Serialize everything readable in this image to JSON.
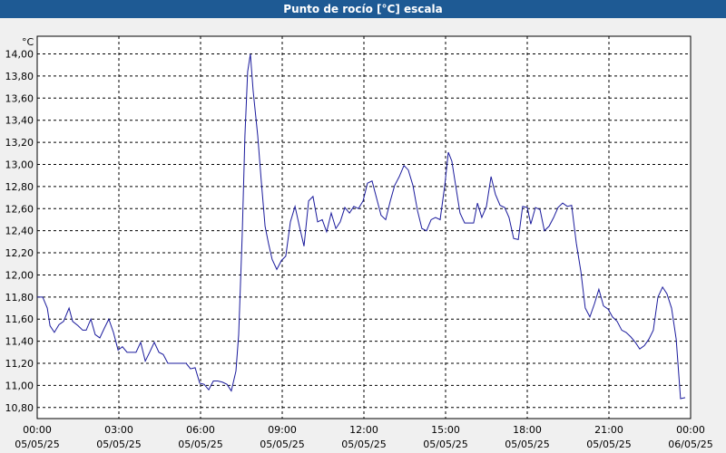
{
  "chart_data": {
    "type": "line",
    "title": "Punto de rocío [°C] escala",
    "y_label": "°C",
    "x": [
      0,
      0.2,
      0.37,
      0.47,
      0.63,
      0.8,
      0.97,
      1.17,
      1.3,
      1.5,
      1.67,
      1.8,
      1.97,
      2.13,
      2.3,
      2.47,
      2.63,
      2.8,
      2.97,
      3.13,
      3.3,
      3.47,
      3.63,
      3.8,
      3.97,
      4.13,
      4.3,
      4.47,
      4.63,
      4.8,
      4.97,
      5.3,
      5.47,
      5.63,
      5.8,
      5.97,
      6.13,
      6.3,
      6.47,
      6.63,
      6.8,
      6.97,
      7.13,
      7.3,
      7.4,
      7.53,
      7.63,
      7.73,
      7.83,
      7.93,
      8.1,
      8.23,
      8.37,
      8.5,
      8.63,
      8.8,
      8.97,
      9.13,
      9.3,
      9.47,
      9.63,
      9.8,
      9.97,
      10.13,
      10.3,
      10.47,
      10.63,
      10.8,
      10.97,
      11.13,
      11.3,
      11.47,
      11.63,
      11.8,
      11.97,
      12.13,
      12.3,
      12.47,
      12.63,
      12.8,
      12.97,
      13.13,
      13.3,
      13.47,
      13.63,
      13.8,
      13.97,
      14.13,
      14.3,
      14.47,
      14.63,
      14.8,
      14.97,
      15.1,
      15.23,
      15.37,
      15.53,
      15.7,
      15.87,
      16.03,
      16.17,
      16.33,
      16.5,
      16.67,
      16.83,
      17,
      17.17,
      17.33,
      17.5,
      17.67,
      17.83,
      18,
      18.13,
      18.3,
      18.47,
      18.63,
      18.8,
      18.97,
      19.13,
      19.3,
      19.47,
      19.63,
      19.8,
      19.97,
      20.13,
      20.3,
      20.47,
      20.63,
      20.8,
      20.97,
      21.13,
      21.3,
      21.47,
      21.63,
      21.8,
      21.97,
      22.13,
      22.3,
      22.47,
      22.63,
      22.8,
      22.97,
      23.13,
      23.3,
      23.47,
      23.63,
      23.8
    ],
    "series": [
      {
        "name": "Punto de rocío",
        "color": "#1a1a9c",
        "values": [
          11.8,
          11.8,
          11.7,
          11.54,
          11.48,
          11.55,
          11.58,
          11.7,
          11.58,
          11.54,
          11.5,
          11.5,
          11.6,
          11.46,
          11.43,
          11.52,
          11.6,
          11.48,
          11.32,
          11.35,
          11.3,
          11.3,
          11.3,
          11.39,
          11.22,
          11.3,
          11.39,
          11.3,
          11.28,
          11.2,
          11.2,
          11.2,
          11.2,
          11.15,
          11.16,
          11.02,
          11.01,
          10.96,
          11.04,
          11.04,
          11.03,
          11.01,
          10.95,
          11.13,
          11.46,
          12.36,
          13.26,
          13.84,
          14.0,
          13.67,
          13.26,
          12.85,
          12.44,
          12.28,
          12.14,
          12.05,
          12.13,
          12.17,
          12.48,
          12.62,
          12.44,
          12.26,
          12.67,
          12.71,
          12.48,
          12.5,
          12.39,
          12.56,
          12.42,
          12.48,
          12.61,
          12.56,
          12.62,
          12.6,
          12.67,
          12.83,
          12.85,
          12.69,
          12.54,
          12.5,
          12.67,
          12.81,
          12.89,
          12.99,
          12.95,
          12.81,
          12.58,
          12.42,
          12.4,
          12.5,
          12.52,
          12.5,
          12.81,
          13.11,
          13.03,
          12.81,
          12.56,
          12.47,
          12.47,
          12.47,
          12.65,
          12.52,
          12.62,
          12.89,
          12.73,
          12.63,
          12.61,
          12.52,
          12.33,
          12.32,
          12.62,
          12.61,
          12.46,
          12.61,
          12.59,
          12.4,
          12.44,
          12.52,
          12.61,
          12.65,
          12.62,
          12.63,
          12.29,
          12.03,
          11.7,
          11.62,
          11.74,
          11.87,
          11.72,
          11.69,
          11.62,
          11.58,
          11.5,
          11.48,
          11.44,
          11.39,
          11.33,
          11.36,
          11.42,
          11.5,
          11.8,
          11.89,
          11.83,
          11.7,
          11.42,
          10.88,
          10.89
        ]
      }
    ],
    "xlim": [
      0,
      24
    ],
    "xticks": [
      {
        "value": 0,
        "label": "00:00\n05/05/25"
      },
      {
        "value": 3,
        "label": "03:00\n05/05/25"
      },
      {
        "value": 6,
        "label": "06:00\n05/05/25"
      },
      {
        "value": 9,
        "label": "09:00\n05/05/25"
      },
      {
        "value": 12,
        "label": "12:00\n05/05/25"
      },
      {
        "value": 15,
        "label": "15:00\n05/05/25"
      },
      {
        "value": 18,
        "label": "18:00\n05/05/25"
      },
      {
        "value": 21,
        "label": "21:00\n05/05/25"
      },
      {
        "value": 24,
        "label": "00:00\n06/05/25"
      }
    ],
    "ylim": [
      10.7,
      14.16
    ],
    "yticks": [
      {
        "value": 10.8,
        "label": "10,80"
      },
      {
        "value": 11.0,
        "label": "11,00"
      },
      {
        "value": 11.2,
        "label": "11,20"
      },
      {
        "value": 11.4,
        "label": "11,40"
      },
      {
        "value": 11.6,
        "label": "11,60"
      },
      {
        "value": 11.8,
        "label": "11,80"
      },
      {
        "value": 12.0,
        "label": "12,00"
      },
      {
        "value": 12.2,
        "label": "12,20"
      },
      {
        "value": 12.4,
        "label": "12,40"
      },
      {
        "value": 12.6,
        "label": "12,60"
      },
      {
        "value": 12.8,
        "label": "12,80"
      },
      {
        "value": 13.0,
        "label": "13,00"
      },
      {
        "value": 13.2,
        "label": "13,20"
      },
      {
        "value": 13.4,
        "label": "13,40"
      },
      {
        "value": 13.6,
        "label": "13,60"
      },
      {
        "value": 13.8,
        "label": "13,80"
      },
      {
        "value": 14.0,
        "label": "14,00"
      }
    ],
    "grid": true
  }
}
